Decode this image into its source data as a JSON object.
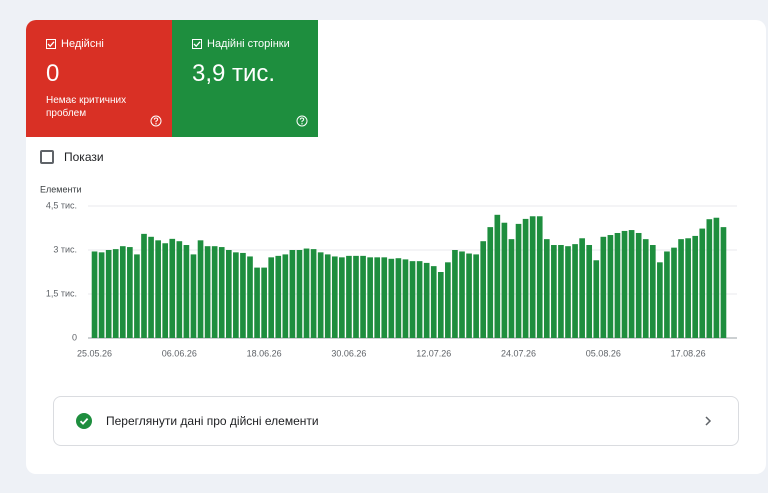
{
  "tiles": [
    {
      "label": "Недійсні",
      "value": "0",
      "subtitle": "Немає критичних проблем"
    },
    {
      "label": "Надійні сторінки",
      "value": "3,9 тис."
    }
  ],
  "checkbox_label": "Покази",
  "chart_data": {
    "type": "bar",
    "y_label": "Елементи",
    "color": "#1e8e3e",
    "grid": true,
    "ylim": [
      0,
      4500
    ],
    "yticks": [
      0,
      {
        "value": 1500,
        "label": "1,5 тис."
      },
      {
        "value": 3000,
        "label": "3 тис."
      },
      {
        "value": 4500,
        "label": "4,5 тис."
      }
    ],
    "categories": [
      "25.05.26",
      null,
      null,
      null,
      null,
      null,
      null,
      null,
      null,
      null,
      null,
      null,
      "06.06.26",
      null,
      null,
      null,
      null,
      null,
      null,
      null,
      null,
      null,
      null,
      null,
      "18.06.26",
      null,
      null,
      null,
      null,
      null,
      null,
      null,
      null,
      null,
      null,
      null,
      "30.06.26",
      null,
      null,
      null,
      null,
      null,
      null,
      null,
      null,
      null,
      null,
      null,
      "12.07.26",
      null,
      null,
      null,
      null,
      null,
      null,
      null,
      null,
      null,
      null,
      null,
      "24.07.26",
      null,
      null,
      null,
      null,
      null,
      null,
      null,
      null,
      null,
      null,
      null,
      "05.08.26",
      null,
      null,
      null,
      null,
      null,
      null,
      null,
      null,
      null,
      null,
      null,
      "17.08.26",
      null,
      null,
      null,
      null,
      null
    ],
    "values": [
      2950,
      2920,
      3000,
      3030,
      3130,
      3100,
      2850,
      3550,
      3450,
      3330,
      3230,
      3380,
      3300,
      3170,
      2850,
      3330,
      3130,
      3130,
      3100,
      3000,
      2920,
      2900,
      2780,
      2400,
      2400,
      2750,
      2800,
      2850,
      3000,
      3000,
      3050,
      3030,
      2920,
      2850,
      2780,
      2750,
      2800,
      2800,
      2800,
      2750,
      2750,
      2750,
      2700,
      2720,
      2680,
      2620,
      2620,
      2560,
      2450,
      2250,
      2580,
      3000,
      2950,
      2880,
      2850,
      3300,
      3780,
      4200,
      3930,
      3370,
      3890,
      4060,
      4150,
      4150,
      3370,
      3170,
      3170,
      3130,
      3200,
      3400,
      3170,
      2650,
      3450,
      3510,
      3580,
      3650,
      3680,
      3580,
      3370,
      3170,
      2580,
      2950,
      3080,
      3370,
      3400,
      3480,
      3730,
      4050,
      4100,
      3780
    ]
  },
  "link": {
    "label": "Переглянути дані про дійсні елементи"
  }
}
